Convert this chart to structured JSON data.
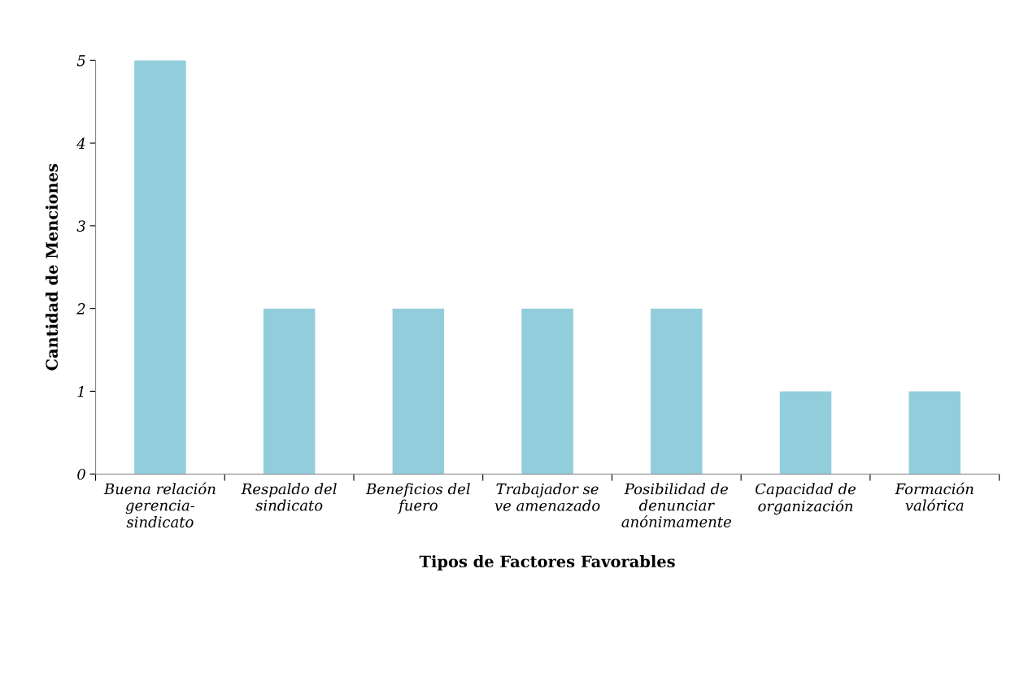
{
  "chart_data": {
    "type": "bar",
    "xlabel": "Tipos de Factores Favorables",
    "ylabel": "Cantidad de Menciones",
    "categories": [
      "Buena relación\ngerencia-\nsindicato",
      "Respaldo del\nsindicato",
      "Beneficios del\nfuero",
      "Trabajador se\nve amenazado",
      "Posibilidad de\ndenunciar\nanónimamente",
      "Capacidad de\norganización",
      "Formación\nvalórica"
    ],
    "values": [
      5,
      2,
      2,
      2,
      2,
      1,
      1
    ],
    "color": "#92cddc",
    "ylim": [
      0,
      5
    ],
    "yticks": [
      0,
      1,
      2,
      3,
      4,
      5
    ],
    "grid": false,
    "legend": false
  }
}
